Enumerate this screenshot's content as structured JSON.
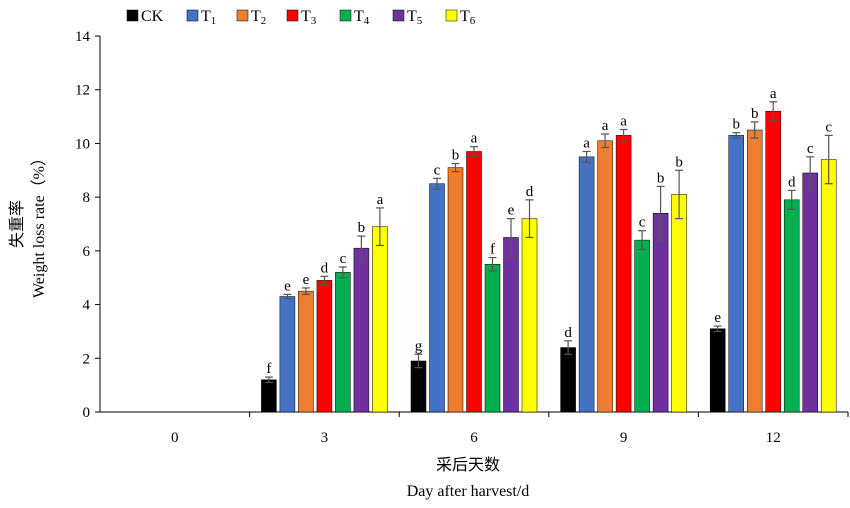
{
  "chart_data": {
    "type": "bar",
    "categories": [
      "0",
      "3",
      "6",
      "9",
      "12"
    ],
    "series": [
      {
        "name": "CK",
        "color": "#000000",
        "values": [
          0,
          1.2,
          1.9,
          2.4,
          3.1
        ],
        "errors": [
          0,
          0.1,
          0.25,
          0.25,
          0.1
        ],
        "labels": [
          "",
          "f",
          "g",
          "d",
          "e"
        ]
      },
      {
        "name": "T",
        "sub": "1",
        "color": "#4472C4",
        "values": [
          0,
          4.3,
          8.5,
          9.5,
          10.3
        ],
        "errors": [
          0,
          0.08,
          0.2,
          0.2,
          0.1
        ],
        "labels": [
          "",
          "e",
          "c",
          "a",
          "b"
        ]
      },
      {
        "name": "T",
        "sub": "2",
        "color": "#ED7D31",
        "values": [
          0,
          4.5,
          9.1,
          10.1,
          10.5
        ],
        "errors": [
          0,
          0.12,
          0.15,
          0.25,
          0.3
        ],
        "labels": [
          "",
          "e",
          "b",
          "a",
          "b"
        ]
      },
      {
        "name": "T",
        "sub": "3",
        "color": "#FF0000",
        "values": [
          0,
          4.9,
          9.7,
          10.3,
          11.2
        ],
        "errors": [
          0,
          0.15,
          0.18,
          0.22,
          0.35
        ],
        "labels": [
          "",
          "d",
          "a",
          "a",
          "a"
        ]
      },
      {
        "name": "T",
        "sub": "4",
        "color": "#00B050",
        "values": [
          0,
          5.2,
          5.5,
          6.4,
          7.9
        ],
        "errors": [
          0,
          0.2,
          0.25,
          0.35,
          0.35
        ],
        "labels": [
          "",
          "c",
          "f",
          "c",
          "d"
        ]
      },
      {
        "name": "T",
        "sub": "5",
        "color": "#7030A0",
        "values": [
          0,
          6.1,
          6.5,
          7.4,
          8.9
        ],
        "errors": [
          0,
          0.45,
          0.7,
          1.0,
          0.6
        ],
        "labels": [
          "",
          "b",
          "e",
          "b",
          "c"
        ]
      },
      {
        "name": "T",
        "sub": "6",
        "color": "#FFFF00",
        "values": [
          0,
          6.9,
          7.2,
          8.1,
          9.4
        ],
        "errors": [
          0,
          0.7,
          0.7,
          0.9,
          0.9
        ],
        "labels": [
          "",
          "a",
          "d",
          "b",
          "c"
        ]
      }
    ],
    "yticks": [
      "0",
      "2",
      "4",
      "6",
      "8",
      "10",
      "12",
      "14"
    ],
    "ylim": [
      0,
      14
    ],
    "ylabel_cn": "失重率",
    "ylabel_en": "Weight loss rate（%）",
    "xlabel_cn": "采后天数",
    "xlabel_en": "Day after harvest/d",
    "legend_position": "top",
    "grid": false
  }
}
